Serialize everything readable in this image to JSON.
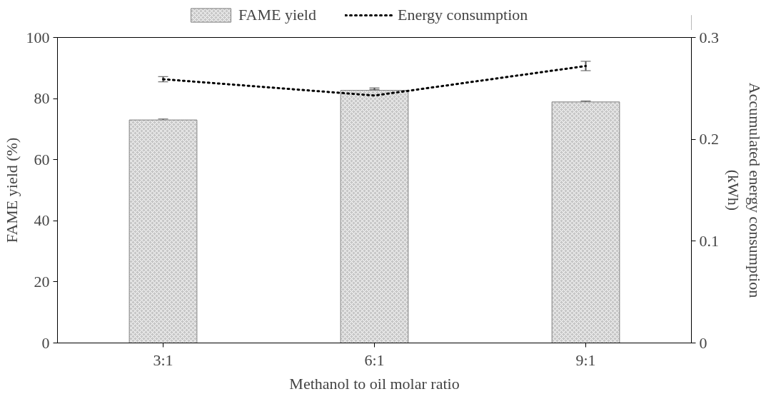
{
  "chart_data": {
    "type": "bar",
    "xlabel": "Methanol to oil molar ratio",
    "ylabel": "FAME yield (%)",
    "y2label": "Accumulated energy consumption (kWh)",
    "categories": [
      "3:1",
      "6:1",
      "9:1"
    ],
    "series": [
      {
        "name": "FAME yield",
        "color": "#c8c8c8",
        "values": [
          73.0,
          82.7,
          78.9
        ],
        "errors": [
          0.3,
          0.8,
          0.3
        ]
      },
      {
        "name": "Energy consumption",
        "type": "line",
        "axis": "y2",
        "color": "#000000",
        "line_style": "dotted",
        "values": [
          0.259,
          0.243,
          0.272
        ],
        "errors": [
          0.0026,
          0.006,
          0.0046
        ]
      }
    ],
    "ylim": [
      0,
      100
    ],
    "yticks": [
      0,
      20,
      40,
      60,
      80,
      100
    ],
    "y2lim": [
      0,
      0.3
    ],
    "y2ticks": [
      0,
      0.1,
      0.2,
      0.3
    ],
    "grid": false,
    "legend": "top"
  }
}
